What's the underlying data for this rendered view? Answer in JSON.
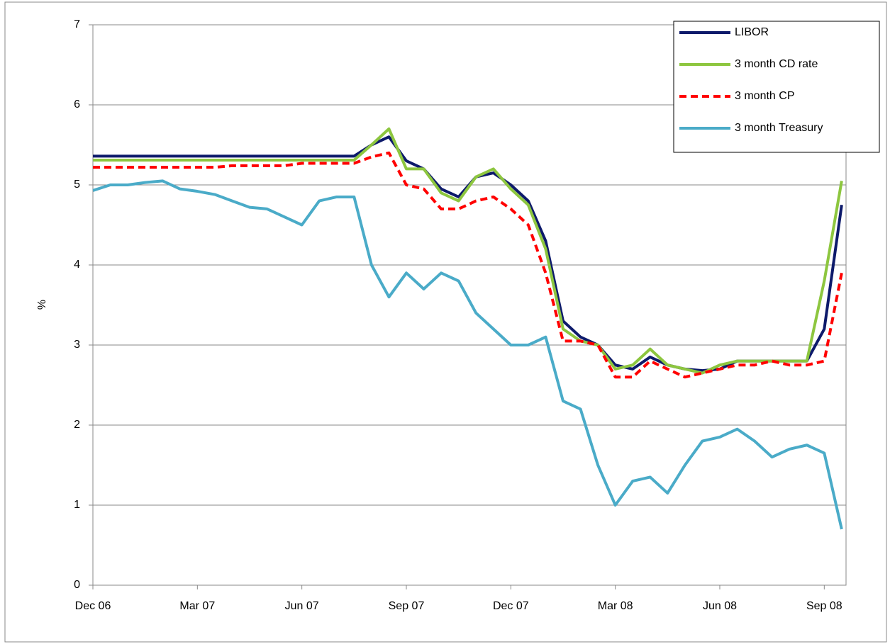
{
  "chart_data": {
    "type": "line",
    "y_label": "%",
    "categories": [
      "Dec 06",
      null,
      null,
      null,
      null,
      null,
      "Mar 07",
      null,
      null,
      null,
      null,
      null,
      "Jun 07",
      null,
      null,
      null,
      null,
      null,
      "Sep 07",
      null,
      null,
      null,
      null,
      null,
      "Dec 07",
      null,
      null,
      null,
      null,
      null,
      "Mar 08",
      null,
      null,
      null,
      null,
      null,
      "Jun 08",
      null,
      null,
      null,
      null,
      null,
      "Sep 08",
      null
    ],
    "ylim": [
      0,
      7
    ],
    "yticks": [
      0,
      1,
      2,
      3,
      4,
      5,
      6,
      7
    ],
    "grid": true,
    "legend": "top-right",
    "series": [
      {
        "name": "LIBOR",
        "color": "#0d1a6b",
        "line_style": "solid",
        "values": [
          5.36,
          5.36,
          5.36,
          5.36,
          5.36,
          5.36,
          5.36,
          5.36,
          5.36,
          5.36,
          5.36,
          5.36,
          5.36,
          5.36,
          5.36,
          5.36,
          5.5,
          5.6,
          5.3,
          5.2,
          4.95,
          4.85,
          5.1,
          5.15,
          5.0,
          4.8,
          4.3,
          3.3,
          3.1,
          3.0,
          2.75,
          2.7,
          2.85,
          2.75,
          2.7,
          2.68,
          2.7,
          2.8,
          2.8,
          2.8,
          2.8,
          2.8,
          3.2,
          4.75
        ]
      },
      {
        "name": "3 month CD rate",
        "color": "#8dc63f",
        "line_style": "solid",
        "values": [
          5.31,
          5.31,
          5.31,
          5.31,
          5.31,
          5.31,
          5.31,
          5.31,
          5.31,
          5.31,
          5.31,
          5.31,
          5.31,
          5.31,
          5.31,
          5.31,
          5.5,
          5.7,
          5.2,
          5.2,
          4.9,
          4.8,
          5.1,
          5.2,
          4.95,
          4.75,
          4.2,
          3.2,
          3.05,
          3.0,
          2.7,
          2.75,
          2.95,
          2.75,
          2.7,
          2.65,
          2.75,
          2.8,
          2.8,
          2.8,
          2.8,
          2.8,
          3.8,
          5.05
        ]
      },
      {
        "name": "3 month CP",
        "color": "#ff0000",
        "line_style": "dashed",
        "values": [
          5.22,
          5.22,
          5.22,
          5.22,
          5.22,
          5.22,
          5.22,
          5.22,
          5.24,
          5.24,
          5.24,
          5.24,
          5.27,
          5.27,
          5.27,
          5.27,
          5.35,
          5.4,
          5.0,
          4.95,
          4.7,
          4.7,
          4.8,
          4.85,
          4.7,
          4.5,
          3.9,
          3.05,
          3.05,
          3.0,
          2.6,
          2.6,
          2.8,
          2.7,
          2.6,
          2.65,
          2.7,
          2.75,
          2.75,
          2.8,
          2.75,
          2.75,
          2.8,
          3.9
        ]
      },
      {
        "name": "3 month Treasury",
        "color": "#4aabc8",
        "line_style": "solid",
        "values": [
          4.93,
          5.0,
          5.0,
          5.03,
          5.05,
          4.95,
          4.92,
          4.88,
          4.8,
          4.72,
          4.7,
          4.6,
          4.5,
          4.8,
          4.85,
          4.85,
          4.0,
          3.6,
          3.9,
          3.7,
          3.9,
          3.8,
          3.4,
          3.2,
          3.0,
          3.0,
          3.1,
          2.3,
          2.2,
          1.5,
          1.0,
          1.3,
          1.35,
          1.15,
          1.5,
          1.8,
          1.85,
          1.95,
          1.8,
          1.6,
          1.7,
          1.75,
          1.65,
          0.7
        ]
      }
    ]
  }
}
